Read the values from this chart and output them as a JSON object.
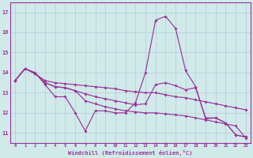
{
  "xlabel": "Windchill (Refroidissement éolien,°C)",
  "background_color": "#d0eaea",
  "line_color": "#993399",
  "grid_color": "#b8c8d8",
  "xlim": [
    -0.5,
    23.5
  ],
  "ylim": [
    10.5,
    17.5
  ],
  "yticks": [
    11,
    12,
    13,
    14,
    15,
    16,
    17
  ],
  "xticks": [
    0,
    1,
    2,
    3,
    4,
    5,
    6,
    7,
    8,
    9,
    10,
    11,
    12,
    13,
    14,
    15,
    16,
    17,
    18,
    19,
    20,
    21,
    22,
    23
  ],
  "series": [
    [
      13.6,
      14.2,
      14.0,
      13.4,
      12.8,
      12.8,
      12.0,
      11.1,
      12.1,
      12.1,
      12.0,
      12.0,
      12.5,
      14.0,
      16.6,
      16.8,
      16.2,
      14.1,
      13.3,
      11.7,
      11.75,
      11.5,
      10.9,
      10.8
    ],
    [
      13.6,
      14.2,
      13.95,
      13.6,
      13.5,
      13.45,
      13.4,
      13.35,
      13.3,
      13.25,
      13.2,
      13.1,
      13.05,
      13.0,
      13.0,
      12.9,
      12.8,
      12.75,
      12.65,
      12.55,
      12.45,
      12.35,
      12.25,
      12.15
    ],
    [
      13.6,
      14.2,
      13.95,
      13.5,
      13.3,
      13.25,
      13.1,
      12.95,
      12.8,
      12.7,
      12.6,
      12.5,
      12.4,
      12.45,
      13.4,
      13.5,
      13.35,
      13.15,
      13.25,
      11.75,
      11.75,
      11.5,
      10.9,
      10.8
    ],
    [
      13.6,
      14.2,
      13.95,
      13.5,
      13.3,
      13.25,
      13.1,
      12.6,
      12.45,
      12.3,
      12.2,
      12.1,
      12.05,
      12.0,
      12.0,
      11.95,
      11.9,
      11.85,
      11.75,
      11.65,
      11.55,
      11.45,
      11.35,
      10.75
    ]
  ]
}
